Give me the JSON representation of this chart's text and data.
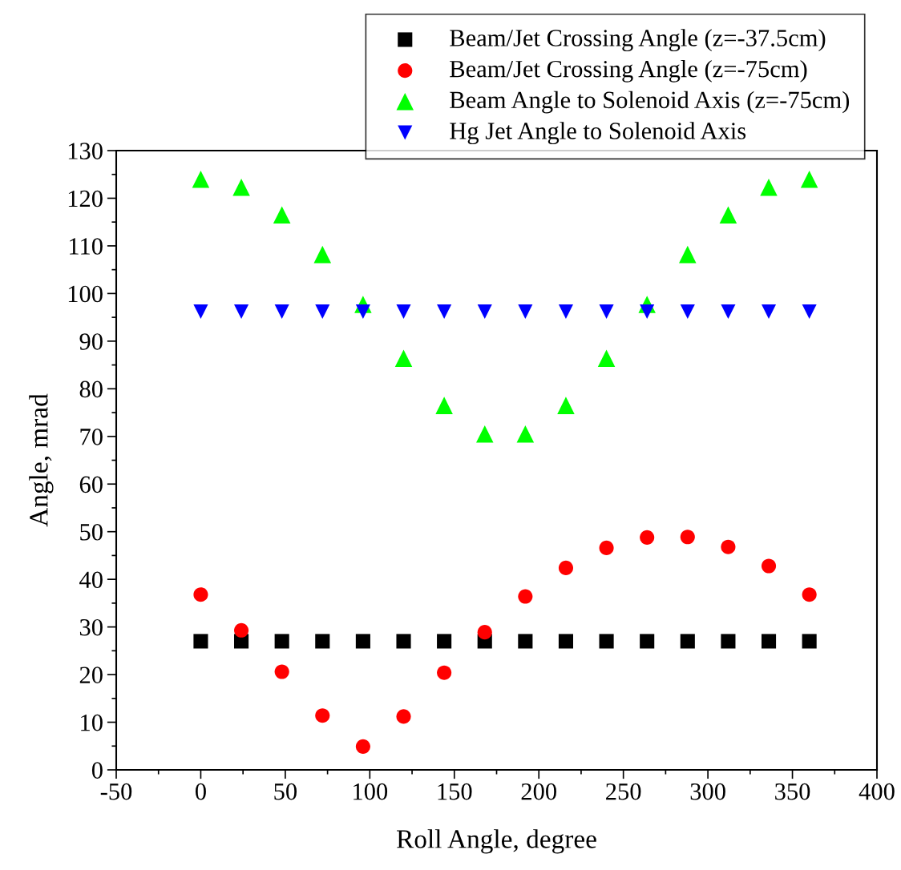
{
  "chart_data": {
    "type": "scatter",
    "xlabel": "Roll Angle, degree",
    "ylabel": "Angle, mrad",
    "x": [
      0,
      24,
      48,
      72,
      96,
      120,
      144,
      168,
      192,
      216,
      240,
      264,
      288,
      312,
      336,
      360
    ],
    "series": [
      {
        "name": "Beam/Jet Crossing Angle (z=-37.5cm)",
        "color": "#000000",
        "marker": "square",
        "values": [
          27,
          27,
          27,
          27,
          27,
          27,
          27,
          27,
          27,
          27,
          27,
          27,
          27,
          27,
          27,
          27
        ]
      },
      {
        "name": "Beam/Jet Crossing Angle (z=-75cm)",
        "color": "#ff0000",
        "marker": "circle",
        "values": [
          36.8,
          29.3,
          20.6,
          11.4,
          4.9,
          11.2,
          20.4,
          28.9,
          36.4,
          42.4,
          46.6,
          48.8,
          48.9,
          46.8,
          42.8,
          36.8
        ]
      },
      {
        "name": "Beam Angle to Solenoid Axis (z=-75cm)",
        "color": "#00ff00",
        "marker": "triangle",
        "values": [
          124,
          122.3,
          116.5,
          108.2,
          97.7,
          86.4,
          76.5,
          70.5,
          70.5,
          76.5,
          86.4,
          97.7,
          108.2,
          116.5,
          122.3,
          124
        ]
      },
      {
        "name": "Hg Jet Angle to Solenoid Axis",
        "color": "#0000ff",
        "marker": "triangle_down",
        "values": [
          96.2,
          96.2,
          96.2,
          96.2,
          96.2,
          96.2,
          96.2,
          96.2,
          96.2,
          96.2,
          96.2,
          96.2,
          96.2,
          96.2,
          96.2,
          96.2
        ]
      }
    ],
    "xlim": [
      -50,
      400
    ],
    "xticks": [
      -50,
      0,
      50,
      100,
      150,
      200,
      250,
      300,
      350,
      400
    ],
    "ylim": [
      0,
      130
    ],
    "yticks": [
      0,
      10,
      20,
      30,
      40,
      50,
      60,
      70,
      80,
      90,
      100,
      110,
      120,
      130
    ],
    "grid": false,
    "legend": "top right"
  }
}
